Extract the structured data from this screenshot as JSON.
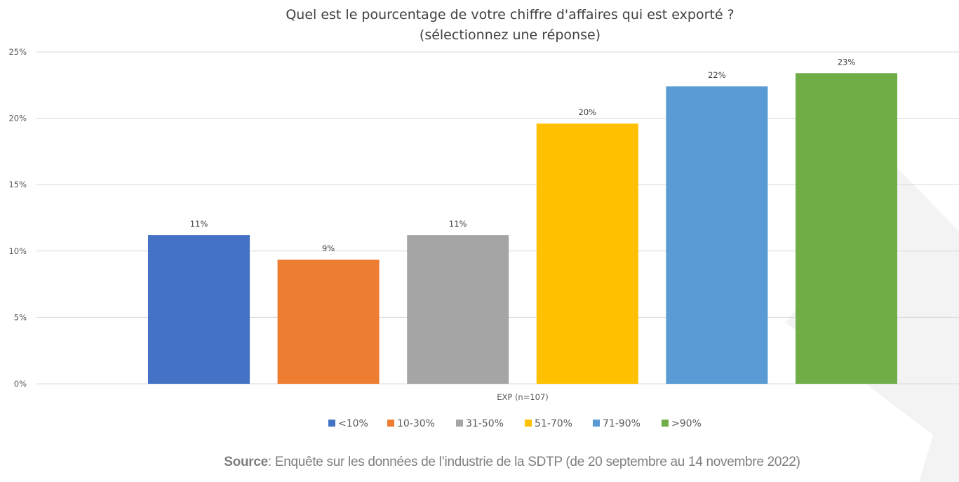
{
  "chart_data": {
    "type": "bar",
    "title": "Quel est le pourcentage de votre chiffre d'affaires qui est exporté ?",
    "subtitle": "(sélectionnez une réponse)",
    "xlabel": "EXP (n=107)",
    "ylabel": "",
    "ylim": [
      0,
      25
    ],
    "yticks": [
      0,
      5,
      10,
      15,
      20,
      25
    ],
    "ytick_labels": [
      "0%",
      "5%",
      "10%",
      "15%",
      "20%",
      "25%"
    ],
    "grid": true,
    "legend_position": "bottom",
    "categories": [
      "EXP (n=107)"
    ],
    "series": [
      {
        "name": "<10%",
        "values": [
          11.2
        ],
        "label": "11%",
        "color": "#4472C4"
      },
      {
        "name": "10-30%",
        "values": [
          9.35
        ],
        "label": "9%",
        "color": "#ED7D31"
      },
      {
        "name": "31-50%",
        "values": [
          11.2
        ],
        "label": "11%",
        "color": "#A5A5A5"
      },
      {
        "name": "51-70%",
        "values": [
          19.6
        ],
        "label": "20%",
        "color": "#FFC000"
      },
      {
        "name": "71-90%",
        "values": [
          22.4
        ],
        "label": "22%",
        "color": "#5B9BD5"
      },
      {
        "name": ">90%",
        "values": [
          23.4
        ],
        "label": "23%",
        "color": "#70AD47"
      }
    ]
  },
  "source": {
    "label": "Source",
    "text": ": Enquête sur les données de l’industrie de la SDTP (de 20 septembre au 14 novembre 2022)"
  }
}
